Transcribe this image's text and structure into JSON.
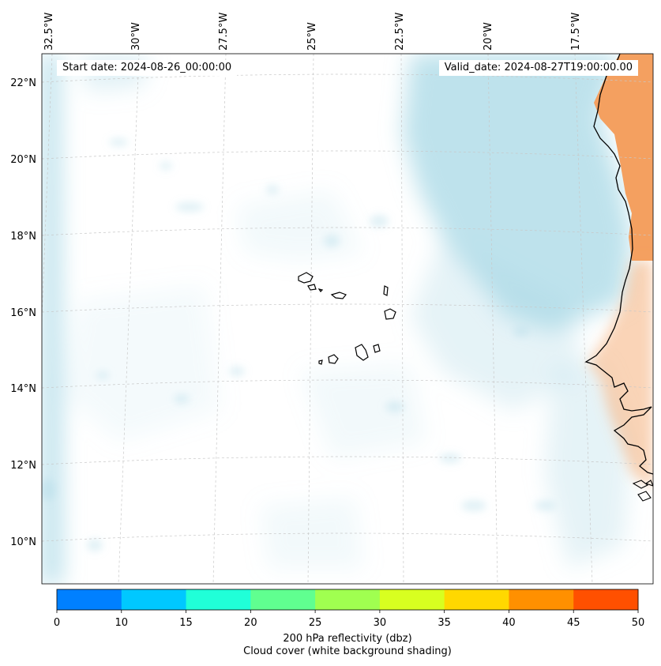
{
  "map": {
    "start_date": "Start date: 2024-08-26_00:00:00",
    "valid_date": "Valid_date: 2024-08-27T19:00:00.00",
    "lon_labels": [
      "32.5°W",
      "30°W",
      "27.5°W",
      "25°W",
      "22.5°W",
      "20°W",
      "17.5°W"
    ],
    "lat_labels": [
      "22°N",
      "20°N",
      "18°N",
      "16°N",
      "14°N",
      "12°N",
      "10°N"
    ],
    "colors": {
      "cloud_shading": "#a8d8e6",
      "land_reflectivity": "#f4a060",
      "coastline": "#000000",
      "gridline": "#c8c8c8"
    }
  },
  "colorbar": {
    "title": "200 hPa reflectivity (dbz)",
    "subtitle": "Cloud cover (white background shading)",
    "ticks": [
      "0",
      "10",
      "15",
      "20",
      "25",
      "30",
      "35",
      "40",
      "45",
      "50"
    ],
    "colors": [
      "#0080ff",
      "#00c8ff",
      "#20ffd8",
      "#60ff90",
      "#a0ff50",
      "#d8ff20",
      "#ffd800",
      "#ff9000",
      "#ff5000"
    ]
  }
}
